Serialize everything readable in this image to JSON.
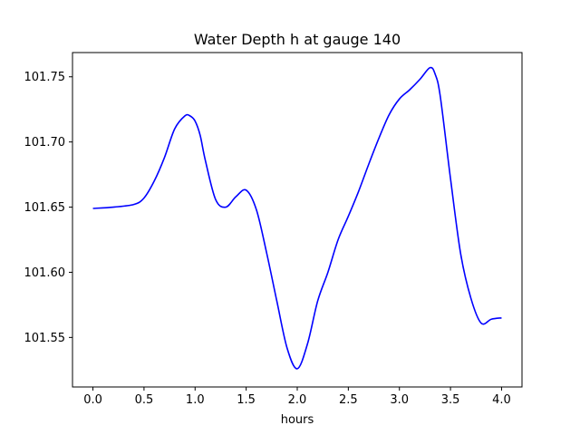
{
  "chart_data": {
    "type": "line",
    "title": "Water Depth h at gauge 140",
    "xlabel": "hours",
    "ylabel": "",
    "xlim": [
      -0.2,
      4.2
    ],
    "ylim": [
      101.512,
      101.7686
    ],
    "xticks": [
      0.0,
      0.5,
      1.0,
      1.5,
      2.0,
      2.5,
      3.0,
      3.5,
      4.0
    ],
    "xtick_labels": [
      "0.0",
      "0.5",
      "1.0",
      "1.5",
      "2.0",
      "2.5",
      "3.0",
      "3.5",
      "4.0"
    ],
    "yticks": [
      101.55,
      101.6,
      101.65,
      101.7,
      101.75
    ],
    "ytick_labels": [
      "101.55",
      "101.60",
      "101.65",
      "101.70",
      "101.75"
    ],
    "grid": false,
    "series": [
      {
        "color": "#0000ff",
        "x": [
          0.0,
          0.2,
          0.4,
          0.5,
          0.6,
          0.7,
          0.8,
          0.9,
          0.95,
          1.0,
          1.05,
          1.1,
          1.2,
          1.3,
          1.4,
          1.5,
          1.6,
          1.7,
          1.8,
          1.9,
          2.0,
          2.1,
          2.2,
          2.3,
          2.4,
          2.5,
          2.6,
          2.7,
          2.8,
          2.9,
          3.0,
          3.1,
          3.2,
          3.3,
          3.35,
          3.4,
          3.5,
          3.6,
          3.7,
          3.8,
          3.9,
          4.0
        ],
        "y": [
          101.649,
          101.65,
          101.652,
          101.657,
          101.67,
          101.688,
          101.71,
          101.72,
          101.72,
          101.716,
          101.705,
          101.686,
          101.656,
          101.65,
          101.658,
          101.663,
          101.648,
          101.615,
          101.578,
          101.542,
          101.526,
          101.545,
          101.578,
          101.6,
          101.625,
          101.643,
          101.662,
          101.683,
          101.703,
          101.721,
          101.733,
          101.74,
          101.748,
          101.757,
          101.752,
          101.735,
          101.672,
          101.614,
          101.58,
          101.561,
          101.564,
          101.565
        ]
      }
    ]
  }
}
